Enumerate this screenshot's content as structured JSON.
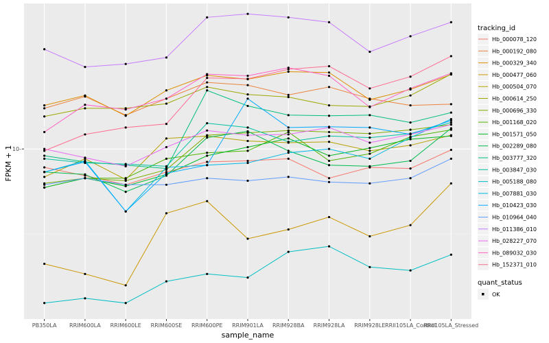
{
  "chart_data": {
    "type": "line",
    "xlabel": "sample_name",
    "ylabel": "FPKM + 1",
    "y_scale": "log10",
    "ylim": [
      1.6,
      48
    ],
    "y_ticks": [
      10
    ],
    "x": [
      "PB350LA",
      "RRIM600LA",
      "RRIM600LE",
      "RRIM600SE",
      "RRIM600PE",
      "RRIM901LA",
      "RRIM928BA",
      "RRIM928LA",
      "RRIM928LE",
      "RRII105LA_Control",
      "RRII105LA_Stressed"
    ],
    "legend": {
      "title": "tracking_id",
      "position": "right"
    },
    "legend2": {
      "title": "quant_status",
      "items": [
        "OK"
      ]
    },
    "series": [
      {
        "name": "Hb_000078_120",
        "color": "#F8766D",
        "values": [
          8.2,
          7.5,
          6.8,
          7.8,
          8.7,
          8.8,
          9.0,
          7.3,
          8.2,
          8.1,
          9.9
        ]
      },
      {
        "name": "Hb_000192_080",
        "color": "#EC823C",
        "values": [
          15.5,
          17.6,
          14.4,
          17.2,
          20.5,
          19.9,
          17.9,
          19.5,
          17.2,
          16.0,
          16.2
        ]
      },
      {
        "name": "Hb_000329_340",
        "color": "#DD8D00",
        "values": [
          16.0,
          17.8,
          14.3,
          18.8,
          22.1,
          21.2,
          23.0,
          22.8,
          17.0,
          19.0,
          22.3
        ]
      },
      {
        "name": "Hb_000477_060",
        "color": "#CB9700",
        "values": [
          2.9,
          2.6,
          2.3,
          5.0,
          5.7,
          3.8,
          4.2,
          4.8,
          3.9,
          4.4,
          6.9
        ]
      },
      {
        "name": "Hb_000504_070",
        "color": "#B5A100",
        "values": [
          7.4,
          9.0,
          7.2,
          11.2,
          11.5,
          10.9,
          10.7,
          10.8,
          9.8,
          10.4,
          11.6
        ]
      },
      {
        "name": "Hb_000614_250",
        "color": "#9BA800",
        "values": [
          14.2,
          15.5,
          15.5,
          16.3,
          19.5,
          18.0,
          17.5,
          16.0,
          15.8,
          17.8,
          22.4
        ]
      },
      {
        "name": "Hb_000696_330",
        "color": "#7CAE00",
        "values": [
          6.9,
          7.3,
          7.1,
          8.0,
          11.6,
          11.9,
          12.2,
          12.0,
          11.8,
          12.3,
          13.0
        ]
      },
      {
        "name": "Hb_001168_020",
        "color": "#4FB300",
        "values": [
          6.6,
          7.3,
          7.3,
          9.0,
          9.6,
          9.8,
          12.0,
          8.8,
          9.5,
          11.4,
          12.3
        ]
      },
      {
        "name": "Hb_001571_050",
        "color": "#00B81F",
        "values": [
          6.6,
          7.3,
          6.7,
          7.6,
          9.3,
          10.2,
          11.2,
          9.3,
          10.1,
          11.1,
          11.5
        ]
      },
      {
        "name": "Hb_002289_080",
        "color": "#00BB4E",
        "values": [
          7.8,
          7.6,
          6.3,
          7.5,
          11.3,
          12.1,
          9.8,
          8.4,
          8.3,
          8.8,
          12.5
        ]
      },
      {
        "name": "Hb_003777_320",
        "color": "#00BF7D",
        "values": [
          9.3,
          8.7,
          8.4,
          8.1,
          18.8,
          15.9,
          14.4,
          14.3,
          14.4,
          13.3,
          14.8
        ]
      },
      {
        "name": "Hb_003847_030",
        "color": "#00C1A3",
        "values": [
          9.0,
          8.6,
          8.5,
          8.3,
          13.2,
          12.6,
          10.8,
          11.5,
          11.3,
          11.8,
          13.3
        ]
      },
      {
        "name": "Hb_005188_080",
        "color": "#00BFC4",
        "values": [
          1.9,
          2.0,
          1.9,
          2.4,
          2.6,
          2.5,
          3.3,
          3.5,
          2.8,
          2.7,
          3.2
        ]
      },
      {
        "name": "Hb_007881_030",
        "color": "#00B8E5",
        "values": [
          7.8,
          8.8,
          5.1,
          8.2,
          8.4,
          8.6,
          9.6,
          10.0,
          9.0,
          11.3,
          13.8
        ]
      },
      {
        "name": "Hb_010423_030",
        "color": "#00A9FF",
        "values": [
          7.8,
          8.7,
          5.1,
          7.7,
          8.4,
          17.2,
          12.6,
          12.7,
          12.6,
          11.7,
          13.6
        ]
      },
      {
        "name": "Hb_010964_040",
        "color": "#619CFF",
        "values": [
          6.8,
          7.3,
          6.8,
          6.8,
          7.3,
          7.1,
          7.4,
          7.0,
          6.9,
          7.3,
          9.0
        ]
      },
      {
        "name": "Hb_011386_010",
        "color": "#C77CFF",
        "values": [
          29.3,
          24.2,
          25.0,
          26.8,
          41.3,
          42.9,
          41.3,
          39.2,
          28.5,
          33.7,
          39.2
        ]
      },
      {
        "name": "Hb_028227_070",
        "color": "#E76BF3",
        "values": [
          10.0,
          9.1,
          8.3,
          10.2,
          12.2,
          11.6,
          11.7,
          12.6,
          10.7,
          11.7,
          13.0
        ]
      },
      {
        "name": "Hb_089032_030",
        "color": "#FF61C3",
        "values": [
          12.0,
          16.1,
          15.3,
          17.2,
          22.4,
          22.0,
          24.0,
          22.0,
          15.7,
          19.2,
          22.6
        ]
      },
      {
        "name": "Hb_152371_010",
        "color": "#FF6C91",
        "values": [
          9.8,
          11.7,
          12.6,
          13.1,
          21.5,
          21.3,
          23.6,
          24.4,
          19.2,
          21.8,
          27.2
        ]
      }
    ]
  }
}
